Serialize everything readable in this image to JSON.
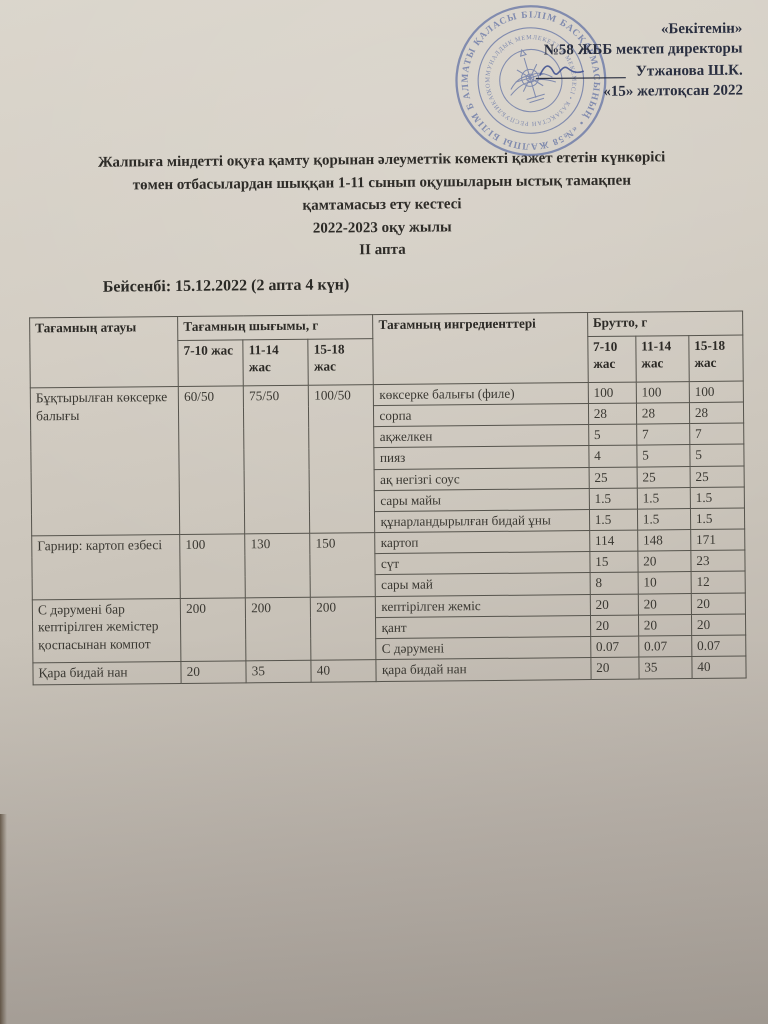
{
  "document": {
    "approval": {
      "approve_label": "«Бекітемін»",
      "director_line": "№58 ЖББ мектеп директоры",
      "signer_name": "Утжанова Ш.К.",
      "date_line": "«15» желтоқсан 2022"
    },
    "stamp": {
      "outer_text": "АЛМАТЫ ҚАЛАСЫ БІЛІМ БАСҚАРМАСЫНЫҢ • «№58 ЖАЛПЫ БІЛІМ БЕРЕТІН МЕКТЕП»",
      "inner_text": "КОММУНАЛДЫҚ МЕМЛЕКЕТТІК МЕКЕМЕСІ • ҚАЗАҚСТАН РЕСПУБЛИКАСЫ •",
      "color": "#51649f"
    },
    "title_lines": [
      "Жалпыға міндетті оқуға қамту қорынан әлеуметтік көмекті қажет ететін күнкөрісі",
      "төмен отбасылардан шыққан 1-11 сынып оқушыларын ыстық тамақпен",
      "қамтамасыз ету кестесі",
      "2022-2023  оқу жылы",
      "II апта"
    ],
    "day_heading": "Бейсенбі: 15.12.2022 (2 апта 4 күн)",
    "table": {
      "col_headers": {
        "dish": "Тағамның атауы",
        "yield": "Тағамның шығымы, г",
        "ingredients": "Тағамның ингредиенттері",
        "brutto": "Брутто, г",
        "age_groups": [
          "7-10 жас",
          "11-14 жас",
          "15-18 жас"
        ]
      },
      "groups": [
        {
          "dish": "Бұқтырылған көксерке балығы",
          "portions": [
            "60/50",
            "75/50",
            "100/50"
          ],
          "ingredients": [
            {
              "name": "көксерке балығы (филе)",
              "brutto": [
                "100",
                "100",
                "100"
              ]
            },
            {
              "name": "сорпа",
              "brutto": [
                "28",
                "28",
                "28"
              ]
            },
            {
              "name": "ақжелкен",
              "brutto": [
                "5",
                "7",
                "7"
              ]
            },
            {
              "name": "пияз",
              "brutto": [
                "4",
                "5",
                "5"
              ]
            },
            {
              "name": "ақ негізгі соус",
              "brutto": [
                "25",
                "25",
                "25"
              ]
            },
            {
              "name": "сары майы",
              "brutto": [
                "1.5",
                "1.5",
                "1.5"
              ]
            },
            {
              "name": "құнарландырылған бидай ұны",
              "brutto": [
                "1.5",
                "1.5",
                "1.5"
              ]
            }
          ]
        },
        {
          "dish": "Гарнир: картоп езбесі",
          "portions": [
            "100",
            "130",
            "150"
          ],
          "ingredients": [
            {
              "name": "картоп",
              "brutto": [
                "114",
                "148",
                "171"
              ]
            },
            {
              "name": "сүт",
              "brutto": [
                "15",
                "20",
                "23"
              ]
            },
            {
              "name": "сары май",
              "brutto": [
                "8",
                "10",
                "12"
              ]
            }
          ]
        },
        {
          "dish": "С дәрумені бар кептірілген жемістер қоспасынан компот",
          "portions": [
            "200",
            "200",
            "200"
          ],
          "ingredients": [
            {
              "name": "кептірілген  жеміс",
              "brutto": [
                "20",
                "20",
                "20"
              ]
            },
            {
              "name": "қант",
              "brutto": [
                "20",
                "20",
                "20"
              ]
            },
            {
              "name": "С дәрумені",
              "brutto": [
                "0.07",
                "0.07",
                "0.07"
              ]
            }
          ]
        },
        {
          "dish": "Қара бидай нан",
          "portions": [
            "20",
            "35",
            "40"
          ],
          "ingredients": [
            {
              "name": "қара бидай нан",
              "brutto": [
                "20",
                "35",
                "40"
              ]
            }
          ]
        }
      ]
    }
  }
}
